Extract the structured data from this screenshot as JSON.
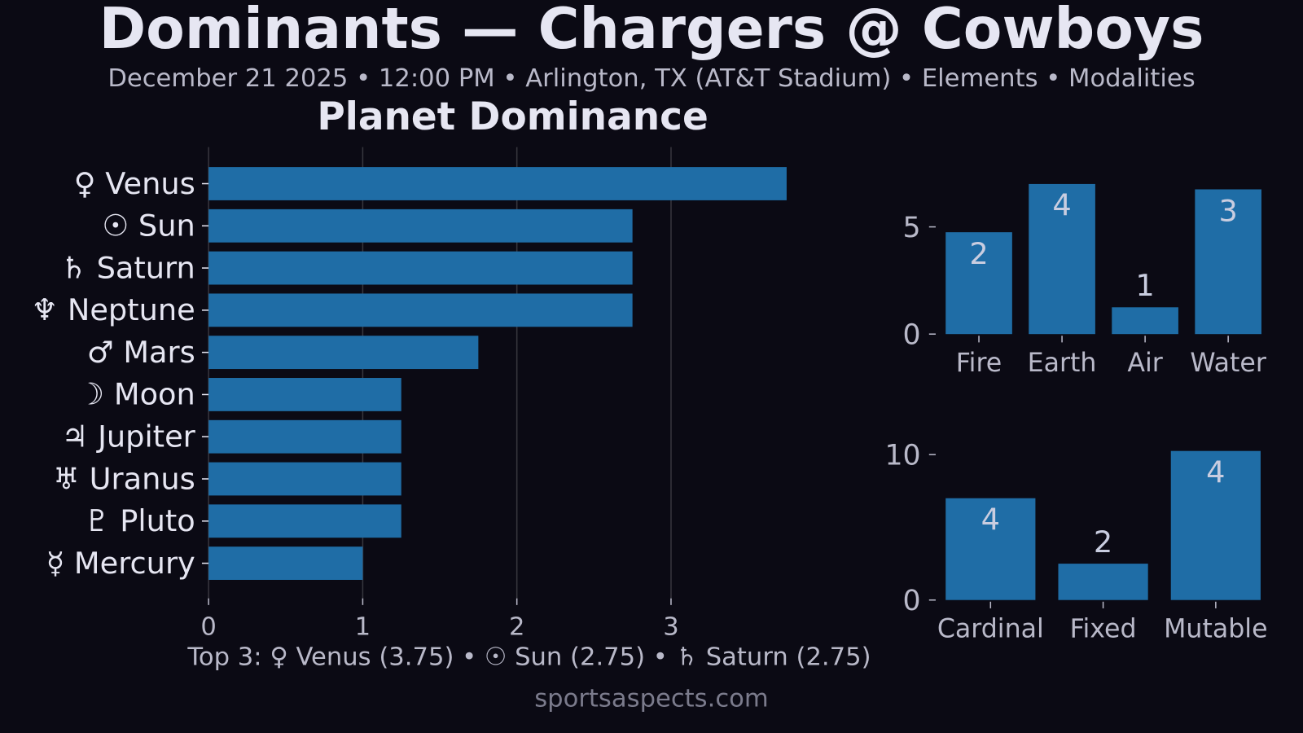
{
  "title": "Dominants — Chargers @ Cowboys",
  "subtitle": "December 21 2025 • 12:00 PM • Arlington, TX (AT&T Stadium) • Elements • Modalities",
  "footer": "sportsaspects.com",
  "colors": {
    "background": "#0b0a14",
    "bar": "#1f6da6",
    "text": "#e6e6f2",
    "muted": "#b9b9c9"
  },
  "chart_data": [
    {
      "type": "bar",
      "orientation": "horizontal",
      "title": "Planet Dominance",
      "categories": [
        "♀ Venus",
        "☉ Sun",
        "♄ Saturn",
        "♆ Neptune",
        "♂ Mars",
        "☽ Moon",
        "♃ Jupiter",
        "♅ Uranus",
        "♇ Pluto",
        "☿ Mercury"
      ],
      "values": [
        3.75,
        2.75,
        2.75,
        2.75,
        1.75,
        1.25,
        1.25,
        1.25,
        1.25,
        1.0
      ],
      "xticks": [
        "0",
        "1",
        "2",
        "3"
      ],
      "xlim": [
        0,
        4.2
      ],
      "grid": "vertical",
      "annotation": "Top 3: ♀ Venus (3.75) • ☉ Sun (2.75) • ♄ Saturn (2.75)"
    },
    {
      "type": "bar",
      "title": "Elements",
      "categories": [
        "Fire",
        "Earth",
        "Air",
        "Water"
      ],
      "values": [
        4.75,
        7.0,
        1.25,
        6.75
      ],
      "labels": [
        "2",
        "4",
        "1",
        "3"
      ],
      "yticks": [
        "0",
        "5"
      ],
      "ylim": [
        0,
        7.35
      ]
    },
    {
      "type": "bar",
      "title": "Modalities",
      "categories": [
        "Cardinal",
        "Fixed",
        "Mutable"
      ],
      "values": [
        7.0,
        2.5,
        10.25
      ],
      "labels": [
        "4",
        "2",
        "4"
      ],
      "yticks": [
        "0",
        "10"
      ],
      "ylim": [
        0,
        10.8
      ]
    }
  ]
}
